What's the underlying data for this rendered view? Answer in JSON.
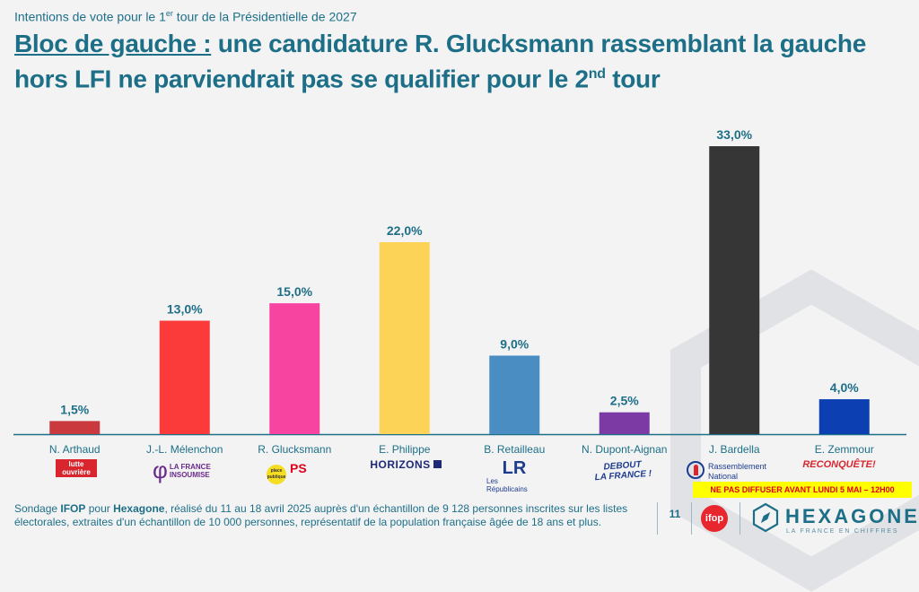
{
  "header": {
    "subtitle_pre": "Intentions de vote pour le 1",
    "subtitle_sup": "er",
    "subtitle_post": " tour de la Présidentielle de 2027",
    "title_lead": "Bloc de gauche :",
    "title_main": " une candidature R. Glucksmann rassemblant la gauche hors LFI ne parviendrait pas se qualifier pour le 2",
    "title_sup": "nd",
    "title_end": " tour"
  },
  "chart_data": {
    "type": "bar",
    "categories": [
      "N. Arthaud",
      "J.-L. Mélenchon",
      "R. Glucksmann",
      "E. Philippe",
      "B. Retailleau",
      "N. Dupont-Aignan",
      "J. Bardella",
      "E. Zemmour"
    ],
    "values": [
      1.5,
      13.0,
      15.0,
      22.0,
      9.0,
      2.5,
      33.0,
      4.0
    ],
    "value_labels": [
      "1,5%",
      "13,0%",
      "15,0%",
      "22,0%",
      "9,0%",
      "2,5%",
      "33,0%",
      "4,0%"
    ],
    "colors": [
      "#c9393e",
      "#fb3a3a",
      "#f744a1",
      "#fdd357",
      "#4a8dc2",
      "#7c3aa5",
      "#363636",
      "#0b3fb2"
    ],
    "ylim": [
      0,
      33
    ],
    "grid": false
  },
  "logos": {
    "lutte": "lutte ouvrière",
    "lfi_1": "LA FRANCE",
    "lfi_2": "INSOUMISE",
    "pp": "place publique",
    "ps": "PS",
    "horizons": "HORIZONS",
    "lr_mark": "LR",
    "lr_1": "Les",
    "lr_2": "Républicains",
    "dlf_1": "DEBOUT",
    "dlf_2": "LA FRANCE !",
    "rn_1": "Rassemblement",
    "rn_2": "National",
    "rq_main": "RECONQUÊTE",
    "rq_mark": "!"
  },
  "footer": {
    "source_pre": "Sondage ",
    "source_ifop": "IFOP",
    "source_mid": " pour ",
    "source_hex": "Hexagone",
    "source_post": ", réalisé du 11 au 18 avril 2025 auprès d'un échantillon de 9 128 personnes inscrites sur les listes électorales, extraites d'un échantillon de 10 000 personnes, représentatif de la population française âgée de 18 ans et plus.",
    "embargo": "NE PAS DIFFUSER AVANT LUNDI 5 MAI – 12H00",
    "page": "11",
    "ifop_logo": "ifop",
    "brand": "HEXAGONE",
    "tagline": "LA FRANCE EN CHIFFRES"
  }
}
